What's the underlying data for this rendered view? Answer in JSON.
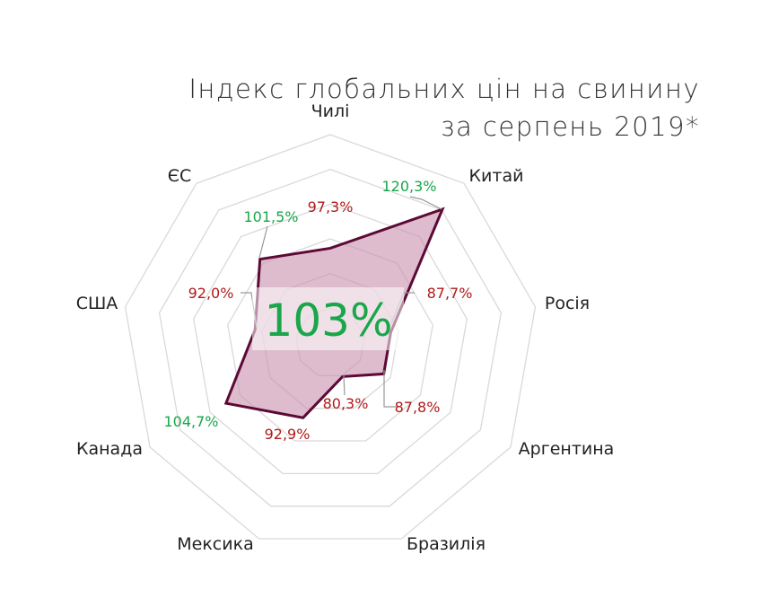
{
  "chart_data": {
    "type": "radar",
    "title": [
      "Індекс глобальних цін на свинину",
      "за серпень 2019*"
    ],
    "categories": [
      "Чилі",
      "Китай",
      "Росія",
      "Аргентина",
      "Бразилія",
      "Мексика",
      "Канада",
      "США",
      "ЄС"
    ],
    "values": [
      97.3,
      120.3,
      87.7,
      87.8,
      80.3,
      92.9,
      104.7,
      92.0,
      101.5
    ],
    "data_labels": [
      "97,3%",
      "120,3%",
      "87,7%",
      "87,8%",
      "80,3%",
      "92,9%",
      "104,7%",
      "92,0%",
      "101,5%"
    ],
    "range": [
      70,
      130
    ],
    "ring_step": 10,
    "center_label": "103%",
    "colors": {
      "line": "#5c0a35",
      "fill": "#c88fad",
      "above": "#1aa64a",
      "below": "#b01a1a",
      "grid": "#d9d9d9"
    }
  }
}
